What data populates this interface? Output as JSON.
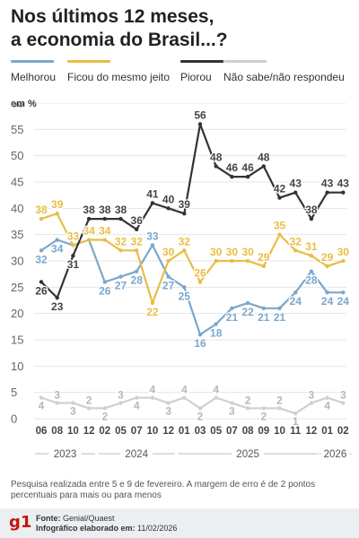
{
  "title": {
    "line1": "Nos últimos 12 meses,",
    "line2": "a economia do Brasil...?"
  },
  "legend": [
    {
      "label": "Melhorou",
      "color": "#7ba7cc"
    },
    {
      "label": "Ficou do mesmo jeito",
      "color": "#e9bd45"
    },
    {
      "label": "Piorou",
      "color": "#333333"
    },
    {
      "label": "Não sabe/não respondeu",
      "color": "#d0d0d0"
    }
  ],
  "unit_label": "em %",
  "chart_data": {
    "type": "line",
    "x_labels": [
      "06",
      "08",
      "10",
      "12",
      "02",
      "05",
      "07",
      "10",
      "12",
      "01",
      "03",
      "05",
      "07",
      "08",
      "09",
      "10",
      "11",
      "12",
      "01",
      "02"
    ],
    "years": [
      {
        "label": "2023",
        "from": 0,
        "to": 3
      },
      {
        "label": "2024",
        "from": 4,
        "to": 8
      },
      {
        "label": "2025",
        "from": 9,
        "to": 17
      },
      {
        "label": "2026",
        "from": 18,
        "to": 19
      }
    ],
    "ylim": [
      0,
      60
    ],
    "yticks": [
      0,
      5,
      10,
      15,
      20,
      25,
      30,
      35,
      40,
      45,
      50,
      55,
      60
    ],
    "grid": true,
    "series": [
      {
        "name": "Melhorou",
        "color": "#7ba7cc",
        "values": [
          32,
          34,
          33,
          34,
          26,
          27,
          28,
          33,
          27,
          25,
          16,
          18,
          21,
          22,
          21,
          21,
          24,
          28,
          24,
          24
        ]
      },
      {
        "name": "Ficou do mesmo jeito",
        "color": "#e9bd45",
        "values": [
          38,
          39,
          33,
          34,
          34,
          32,
          32,
          22,
          30,
          32,
          26,
          30,
          30,
          30,
          29,
          35,
          32,
          31,
          29,
          30
        ]
      },
      {
        "name": "Piorou",
        "color": "#333333",
        "values": [
          26,
          23,
          31,
          38,
          38,
          38,
          36,
          41,
          40,
          39,
          56,
          48,
          46,
          46,
          48,
          42,
          43,
          38,
          43,
          43
        ]
      },
      {
        "name": "Não sabe/não respondeu",
        "color": "#d0d0d0",
        "values": [
          4,
          3,
          3,
          2,
          2,
          3,
          4,
          4,
          3,
          4,
          2,
          4,
          3,
          2,
          2,
          2,
          1,
          3,
          4,
          3
        ]
      }
    ]
  },
  "note": "Pesquisa realizada entre 5 e 9 de fevereiro. A margem de erro é de 2 pontos percentuais para mais ou para menos",
  "footer": {
    "logo": "g1",
    "source_label": "Fonte:",
    "source_value": "Genial/Quaest",
    "made_label": "Infográfico elaborado em:",
    "made_value": "11/02/2026"
  }
}
